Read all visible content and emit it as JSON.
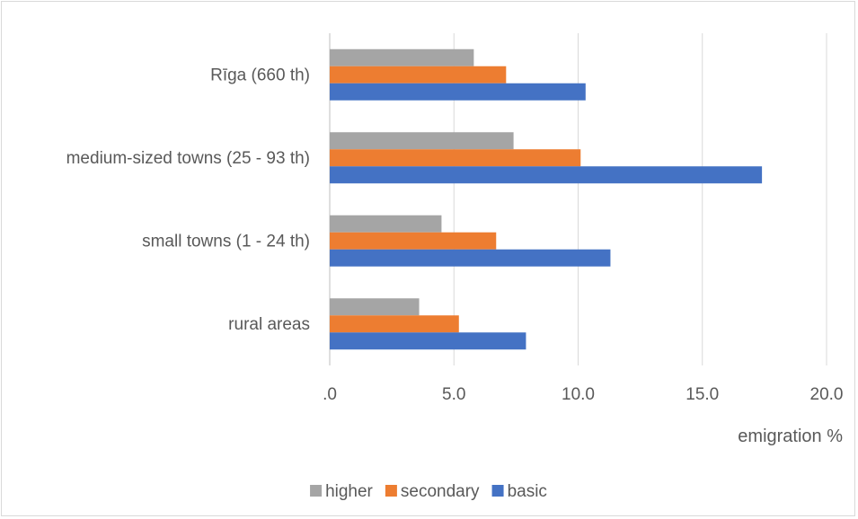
{
  "chart_data": {
    "type": "bar",
    "orientation": "horizontal",
    "categories": [
      "Rīga (660 th)",
      "medium-sized towns (25 - 93 th)",
      "small towns (1 - 24 th)",
      "rural areas"
    ],
    "series": [
      {
        "name": "higher",
        "color": "#a5a5a5",
        "values": [
          5.8,
          7.4,
          4.5,
          3.6
        ]
      },
      {
        "name": "secondary",
        "color": "#ed7d31",
        "values": [
          7.1,
          10.1,
          6.7,
          5.2
        ]
      },
      {
        "name": "basic",
        "color": "#4472c4",
        "values": [
          10.3,
          17.4,
          11.3,
          7.9
        ]
      }
    ],
    "x_ticks": [
      ".0",
      "5.0",
      "10.0",
      "15.0",
      "20.0"
    ],
    "xlim": [
      0,
      20
    ],
    "xlabel": "emigration %",
    "ylabel": "",
    "title": "",
    "grid": true,
    "legend_position": "bottom"
  }
}
